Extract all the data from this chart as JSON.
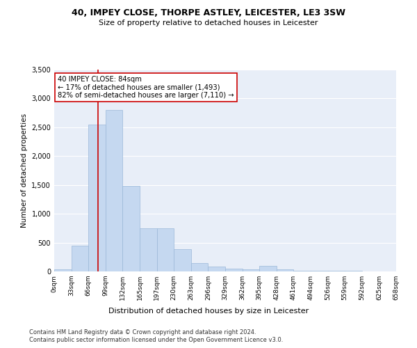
{
  "title1": "40, IMPEY CLOSE, THORPE ASTLEY, LEICESTER, LE3 3SW",
  "title2": "Size of property relative to detached houses in Leicester",
  "xlabel": "Distribution of detached houses by size in Leicester",
  "ylabel": "Number of detached properties",
  "bar_color": "#c5d8f0",
  "bar_edge_color": "#9ab8d8",
  "bins": [
    "0sqm",
    "33sqm",
    "66sqm",
    "99sqm",
    "132sqm",
    "165sqm",
    "197sqm",
    "230sqm",
    "263sqm",
    "296sqm",
    "329sqm",
    "362sqm",
    "395sqm",
    "428sqm",
    "461sqm",
    "494sqm",
    "526sqm",
    "559sqm",
    "592sqm",
    "625sqm",
    "658sqm"
  ],
  "bar_heights": [
    40,
    450,
    2550,
    2800,
    1480,
    750,
    750,
    385,
    140,
    90,
    45,
    40,
    95,
    40,
    15,
    10,
    8,
    8,
    4,
    4
  ],
  "ylim": [
    0,
    3500
  ],
  "yticks": [
    0,
    500,
    1000,
    1500,
    2000,
    2500,
    3000,
    3500
  ],
  "annotation_text": "40 IMPEY CLOSE: 84sqm\n← 17% of detached houses are smaller (1,493)\n82% of semi-detached houses are larger (7,110) →",
  "annotation_box_color": "#ffffff",
  "annotation_box_edge": "#cc0000",
  "vline_color": "#cc0000",
  "vline_x_index": 2.545,
  "bg_color": "#e8eef8",
  "footer1": "Contains HM Land Registry data © Crown copyright and database right 2024.",
  "footer2": "Contains public sector information licensed under the Open Government Licence v3.0."
}
